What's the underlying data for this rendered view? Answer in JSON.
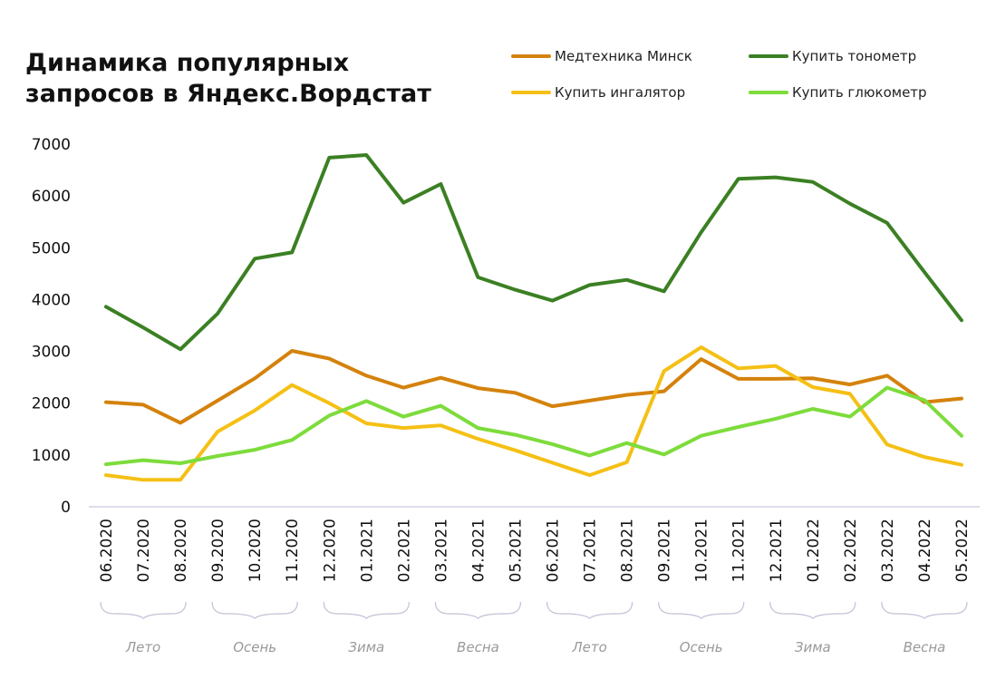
{
  "chart_data": {
    "type": "line",
    "title_lines": [
      "Динамика популярных",
      "запросов в Яндекс.Вордстат"
    ],
    "xlabel": "",
    "ylabel": "",
    "ylim": [
      0,
      7000
    ],
    "y_ticks": [
      "0",
      "1000",
      "2000",
      "3000",
      "4000",
      "5000",
      "6000",
      "7000"
    ],
    "grid": false,
    "legend_position": "top-right",
    "categories": [
      "06.2020",
      "07.2020",
      "08.2020",
      "09.2020",
      "10.2020",
      "11.2020",
      "12.2020",
      "01.2021",
      "02.2021",
      "03.2021",
      "04.2021",
      "05.2021",
      "06.2021",
      "07.2021",
      "08.2021",
      "09.2021",
      "10.2021",
      "11.2021",
      "12.2021",
      "01.2022",
      "02.2022",
      "03.2022",
      "04.2022",
      "05.2022"
    ],
    "series": [
      {
        "name": "Медтехника Минск",
        "color": "#d4820c",
        "values": [
          2020,
          1970,
          1620,
          2050,
          2480,
          3010,
          2860,
          2530,
          2300,
          2490,
          2290,
          2200,
          1940,
          2050,
          2160,
          2230,
          2850,
          2470,
          2470,
          2480,
          2360,
          2530,
          2020,
          2090
        ]
      },
      {
        "name": "Купить тонометр",
        "color": "#3b8023",
        "values": [
          3860,
          3460,
          3040,
          3730,
          4790,
          4910,
          6740,
          6790,
          5870,
          6230,
          4430,
          4190,
          3980,
          4280,
          4380,
          4160,
          5300,
          6330,
          6360,
          6270,
          5850,
          5480,
          4530,
          3600
        ]
      },
      {
        "name": "Купить ингалятор",
        "color": "#f5c015",
        "values": [
          610,
          520,
          520,
          1450,
          1860,
          2350,
          2000,
          1610,
          1520,
          1570,
          1310,
          1090,
          850,
          610,
          860,
          2620,
          3080,
          2670,
          2720,
          2310,
          2180,
          1200,
          960,
          810
        ]
      },
      {
        "name": "Купить глюкометр",
        "color": "#7ddc3c",
        "values": [
          820,
          900,
          840,
          980,
          1100,
          1290,
          1760,
          2040,
          1740,
          1950,
          1520,
          1390,
          1210,
          990,
          1230,
          1010,
          1370,
          1540,
          1700,
          1890,
          1740,
          2300,
          2060,
          1370
        ]
      }
    ],
    "season_groups": [
      {
        "label": "Лето",
        "start": 0,
        "end": 2
      },
      {
        "label": "Осень",
        "start": 3,
        "end": 5
      },
      {
        "label": "Зима",
        "start": 6,
        "end": 8
      },
      {
        "label": "Весна",
        "start": 9,
        "end": 11
      },
      {
        "label": "Лето",
        "start": 12,
        "end": 14
      },
      {
        "label": "Осень",
        "start": 15,
        "end": 17
      },
      {
        "label": "Зима",
        "start": 18,
        "end": 20
      },
      {
        "label": "Весна",
        "start": 21,
        "end": 23
      }
    ],
    "colors": {
      "axis": "#d6d0e4",
      "brace": "#c9c3d8",
      "season_text": "#9a9a9a"
    }
  }
}
